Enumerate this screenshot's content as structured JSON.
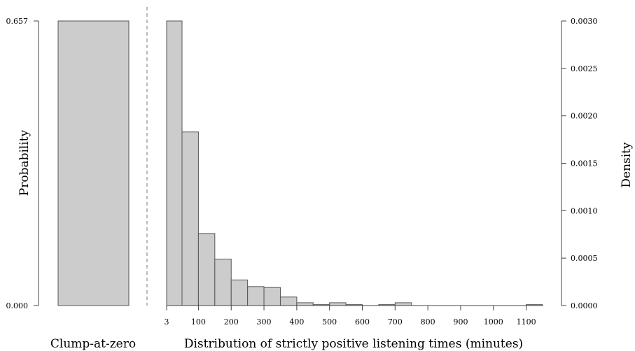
{
  "chart_data": {
    "type": "bar",
    "left_panel": {
      "label": "Clump-at-zero",
      "ylabel": "Probability",
      "value": 0.657,
      "yticks": [
        "0.000",
        "0.657"
      ],
      "ylim": [
        0,
        0.657
      ]
    },
    "right_panel": {
      "xlabel": "Distribution of strictly positive listening times (minutes)",
      "ylabel": "Density",
      "xlim": [
        3,
        1150
      ],
      "ylim": [
        0,
        0.003
      ],
      "xticks": [
        "3",
        "100",
        "200",
        "300",
        "400",
        "500",
        "600",
        "700",
        "800",
        "900",
        "1000",
        "1100"
      ],
      "yticks": [
        "0.0000",
        "0.0005",
        "0.0010",
        "0.0015",
        "0.0020",
        "0.0025",
        "0.0030"
      ],
      "bin_edges": [
        3,
        50,
        100,
        150,
        200,
        250,
        300,
        350,
        400,
        450,
        500,
        550,
        600,
        650,
        700,
        750,
        800,
        850,
        900,
        950,
        1000,
        1050,
        1100,
        1150
      ],
      "densities": [
        0.003,
        0.00183,
        0.00076,
        0.00049,
        0.00027,
        0.0002,
        0.00019,
        9e-05,
        3e-05,
        1e-05,
        3e-05,
        1e-05,
        0.0,
        1e-05,
        3e-05,
        0.0,
        0.0,
        0.0,
        0.0,
        0.0,
        0.0,
        0.0,
        1e-05
      ]
    }
  }
}
